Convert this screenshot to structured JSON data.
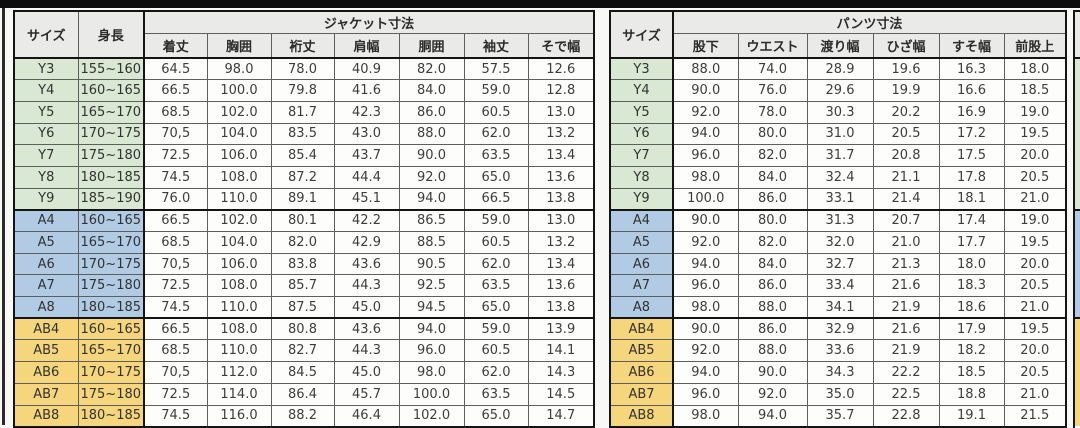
{
  "table": {
    "left": {
      "size_header": "サイズ",
      "height_header": "身長",
      "group_header": "ジャケット寸法",
      "columns": [
        "着丈",
        "胸囲",
        "裄丈",
        "肩幅",
        "胴囲",
        "袖丈",
        "そで幅"
      ]
    },
    "right": {
      "size_header": "サイズ",
      "group_header": "パンツ寸法",
      "columns": [
        "股下",
        "ウエスト",
        "渡り幅",
        "ひざ幅",
        "すそ幅",
        "前股上"
      ]
    },
    "rows": [
      {
        "size": "Y3",
        "group": "y",
        "height": "155~160",
        "jacket": [
          "64.5",
          "98.0",
          "78.0",
          "40.9",
          "82.0",
          "57.5",
          "12.6"
        ],
        "pants": [
          "88.0",
          "74.0",
          "28.9",
          "19.6",
          "16.3",
          "18.0"
        ]
      },
      {
        "size": "Y4",
        "group": "y",
        "height": "160~165",
        "jacket": [
          "66.5",
          "100.0",
          "79.8",
          "41.6",
          "84.0",
          "59.0",
          "12.8"
        ],
        "pants": [
          "90.0",
          "76.0",
          "29.6",
          "19.9",
          "16.6",
          "18.5"
        ]
      },
      {
        "size": "Y5",
        "group": "y",
        "height": "165~170",
        "jacket": [
          "68.5",
          "102.0",
          "81.7",
          "42.3",
          "86.0",
          "60.5",
          "13.0"
        ],
        "pants": [
          "92.0",
          "78.0",
          "30.3",
          "20.2",
          "16.9",
          "19.0"
        ]
      },
      {
        "size": "Y6",
        "group": "y",
        "height": "170~175",
        "jacket": [
          "70,5",
          "104.0",
          "83.5",
          "43.0",
          "88.0",
          "62.0",
          "13.2"
        ],
        "pants": [
          "94.0",
          "80.0",
          "31.0",
          "20.5",
          "17.2",
          "19.5"
        ]
      },
      {
        "size": "Y7",
        "group": "y",
        "height": "175~180",
        "jacket": [
          "72.5",
          "106.0",
          "85.4",
          "43.7",
          "90.0",
          "63.5",
          "13.4"
        ],
        "pants": [
          "96.0",
          "82.0",
          "31.7",
          "20.8",
          "17.5",
          "20.0"
        ]
      },
      {
        "size": "Y8",
        "group": "y",
        "height": "180~185",
        "jacket": [
          "74.5",
          "108.0",
          "87.2",
          "44.4",
          "92.0",
          "65.0",
          "13.6"
        ],
        "pants": [
          "98.0",
          "84.0",
          "32.4",
          "21.1",
          "17.8",
          "20.5"
        ]
      },
      {
        "size": "Y9",
        "group": "y",
        "height": "185~190",
        "jacket": [
          "76.0",
          "110.0",
          "89.1",
          "45.1",
          "94.0",
          "66.5",
          "13.8"
        ],
        "pants": [
          "100.0",
          "86.0",
          "33.1",
          "21.4",
          "18.1",
          "21.0"
        ]
      },
      {
        "size": "A4",
        "group": "a",
        "height": "160~165",
        "jacket": [
          "66.5",
          "102.0",
          "80.1",
          "42.2",
          "86.5",
          "59.0",
          "13.0"
        ],
        "pants": [
          "90.0",
          "80.0",
          "31.3",
          "20.7",
          "17.4",
          "19.0"
        ]
      },
      {
        "size": "A5",
        "group": "a",
        "height": "165~170",
        "jacket": [
          "68.5",
          "104.0",
          "82.0",
          "42.9",
          "88.5",
          "60.5",
          "13.2"
        ],
        "pants": [
          "92.0",
          "82.0",
          "32.0",
          "21.0",
          "17.7",
          "19.5"
        ]
      },
      {
        "size": "A6",
        "group": "a",
        "height": "170~175",
        "jacket": [
          "70,5",
          "106.0",
          "83.8",
          "43.6",
          "90.5",
          "62.0",
          "13.4"
        ],
        "pants": [
          "94.0",
          "84.0",
          "32.7",
          "21.3",
          "18.0",
          "20.0"
        ]
      },
      {
        "size": "A7",
        "group": "a",
        "height": "175~180",
        "jacket": [
          "72.5",
          "108.0",
          "85.7",
          "44.3",
          "92.5",
          "63.5",
          "13.6"
        ],
        "pants": [
          "96.0",
          "86.0",
          "33.4",
          "21.6",
          "18.3",
          "20.5"
        ]
      },
      {
        "size": "A8",
        "group": "a",
        "height": "180~185",
        "jacket": [
          "74.5",
          "110.0",
          "87.5",
          "45.0",
          "94.5",
          "65.0",
          "13.8"
        ],
        "pants": [
          "98.0",
          "88.0",
          "34.1",
          "21.9",
          "18.6",
          "21.0"
        ]
      },
      {
        "size": "AB4",
        "group": "ab",
        "height": "160~165",
        "jacket": [
          "66.5",
          "108.0",
          "80.8",
          "43.6",
          "94.0",
          "59.0",
          "13.9"
        ],
        "pants": [
          "90.0",
          "86.0",
          "32.9",
          "21.6",
          "17.9",
          "19.5"
        ]
      },
      {
        "size": "AB5",
        "group": "ab",
        "height": "165~170",
        "jacket": [
          "68.5",
          "110.0",
          "82.7",
          "44.3",
          "96.0",
          "60.5",
          "14.1"
        ],
        "pants": [
          "92.0",
          "88.0",
          "33.6",
          "21.9",
          "18.2",
          "20.0"
        ]
      },
      {
        "size": "AB6",
        "group": "ab",
        "height": "170~175",
        "jacket": [
          "70,5",
          "112.0",
          "84.5",
          "45.0",
          "98.0",
          "62.0",
          "14.3"
        ],
        "pants": [
          "94.0",
          "90.0",
          "34.3",
          "22.2",
          "18.5",
          "20.5"
        ]
      },
      {
        "size": "AB7",
        "group": "ab",
        "height": "175~180",
        "jacket": [
          "72.5",
          "114.0",
          "86.4",
          "45.7",
          "100.0",
          "63.5",
          "14.5"
        ],
        "pants": [
          "96.0",
          "92.0",
          "35.0",
          "22.5",
          "18.8",
          "21.0"
        ]
      },
      {
        "size": "AB8",
        "group": "ab",
        "height": "180~185",
        "jacket": [
          "74.5",
          "116.0",
          "88.2",
          "46.4",
          "102.0",
          "65.0",
          "14.7"
        ],
        "pants": [
          "98.0",
          "94.0",
          "35.7",
          "22.8",
          "19.1",
          "21.5"
        ]
      }
    ]
  },
  "colors": {
    "header": "#eaeae8",
    "y": "#d9e8d2",
    "a": "#b2cbe4",
    "ab": "#f5d67c",
    "cell": "#fdfdfc"
  }
}
